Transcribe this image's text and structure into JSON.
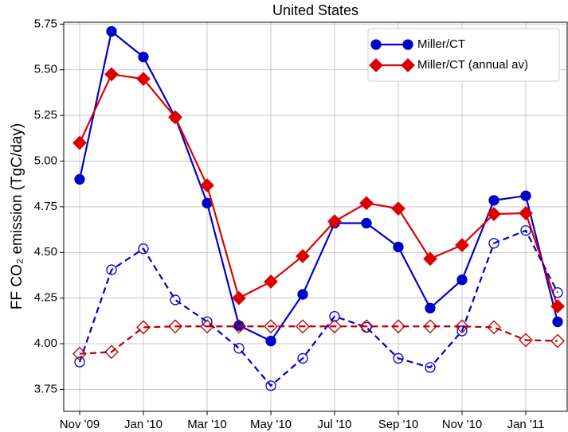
{
  "chart_data": {
    "type": "line",
    "title": "United States",
    "y_label": "FF CO₂ emission (TgC/day)",
    "categories": [
      "Nov '09",
      null,
      "Jan '10",
      null,
      "Mar '10",
      null,
      "May '10",
      null,
      "Jul '10",
      null,
      "Sep '10",
      null,
      "Nov '10",
      null,
      "Jan '11",
      null
    ],
    "series": [
      {
        "name": "Miller/CT",
        "color": "#0000cc",
        "linestyle": "solid",
        "marker": "circle",
        "filled": true,
        "values": [
          4.9,
          5.71,
          5.57,
          5.24,
          4.77,
          4.1,
          4.015,
          4.27,
          4.66,
          4.66,
          4.53,
          4.195,
          4.35,
          4.785,
          4.81,
          4.12
        ]
      },
      {
        "name": "Miller/CT (annual av)",
        "color": "#dd0000",
        "linestyle": "solid",
        "marker": "diamond",
        "filled": true,
        "values": [
          5.1,
          5.475,
          5.45,
          5.24,
          4.867,
          4.25,
          4.34,
          4.48,
          4.67,
          4.77,
          4.74,
          4.465,
          4.54,
          4.71,
          4.715,
          4.205
        ]
      },
      {
        "color": "#0000cc",
        "linestyle": "dashed",
        "marker": "circle",
        "filled": false,
        "values": [
          3.9,
          4.405,
          4.52,
          4.24,
          4.12,
          3.975,
          3.77,
          3.92,
          4.15,
          4.09,
          3.92,
          3.87,
          4.07,
          4.55,
          4.62,
          4.28
        ]
      },
      {
        "color": "#bb0000",
        "linestyle": "dashed",
        "marker": "diamond",
        "filled": false,
        "values": [
          3.945,
          3.955,
          4.09,
          4.095,
          4.095,
          4.095,
          4.095,
          4.095,
          4.095,
          4.095,
          4.095,
          4.095,
          4.095,
          4.09,
          4.02,
          4.015
        ]
      }
    ],
    "ylim": [
      3.63,
      5.76
    ],
    "yticks": [
      3.75,
      {
        "value": 4,
        "label": "4.00"
      },
      4.25,
      {
        "value": 4.5,
        "label": "4.50"
      },
      4.75,
      {
        "value": 5,
        "label": "5.00"
      },
      5.25,
      {
        "value": 5.5,
        "label": "5.50"
      },
      5.75
    ],
    "grid": true,
    "legend": "upper right"
  }
}
